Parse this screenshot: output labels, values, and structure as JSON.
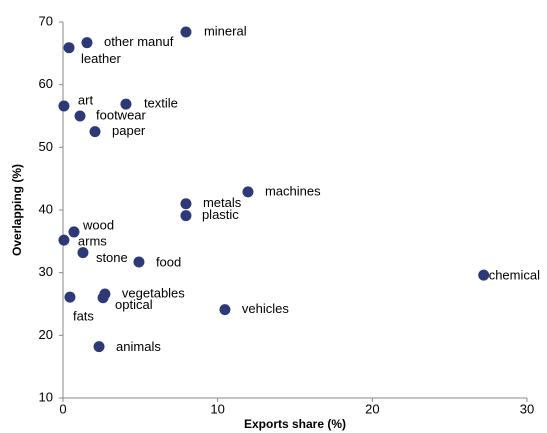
{
  "chart_data": {
    "type": "scatter",
    "x_label": "Exports share (%)",
    "y_label": "Overlapping (%)",
    "labels": [
      "mineral",
      "other manuf",
      "leather",
      "art",
      "textile",
      "footwear",
      "paper",
      "machines",
      "metals",
      "plastic",
      "wood",
      "arms",
      "stone",
      "food",
      "chemical",
      "vegetables",
      "optical",
      "fats",
      "vehicles",
      "animals"
    ],
    "x": [
      7.95,
      1.55,
      0.39,
      0.06,
      4.07,
      1.1,
      2.07,
      11.96,
      7.95,
      7.95,
      0.71,
      0.06,
      1.29,
      4.91,
      27.2,
      2.71,
      2.59,
      0.45,
      10.47,
      2.33
    ],
    "values": [
      68.4,
      66.7,
      65.9,
      56.6,
      56.9,
      55.0,
      52.5,
      42.9,
      41.0,
      39.1,
      36.5,
      35.2,
      33.2,
      31.7,
      29.6,
      26.6,
      26.0,
      26.1,
      24.1,
      18.2
    ],
    "color": "#2e3a78",
    "xlim": [
      0,
      30
    ],
    "xticks": [
      0,
      10,
      20,
      30
    ],
    "ylim": [
      10,
      70
    ],
    "yticks": [
      10,
      20,
      30,
      40,
      50,
      60,
      70
    ]
  }
}
